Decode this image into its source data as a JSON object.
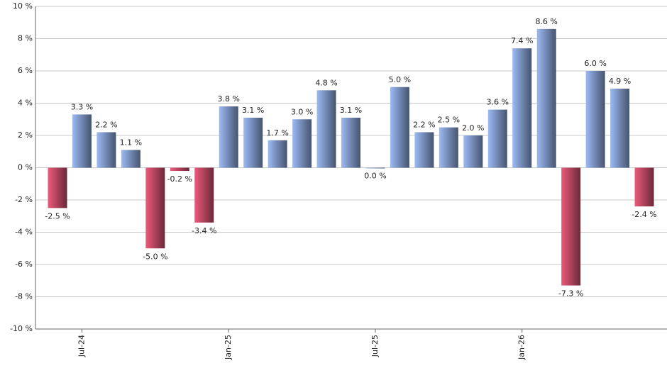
{
  "chart_data": {
    "type": "bar",
    "categories": [
      null,
      "Jul-24",
      null,
      null,
      null,
      null,
      null,
      "Jan-25",
      null,
      null,
      null,
      null,
      null,
      "Jul-25",
      null,
      null,
      null,
      null,
      null,
      "Jan-26",
      null,
      null,
      null,
      null,
      null
    ],
    "values": [
      -2.5,
      3.3,
      2.2,
      1.1,
      -5.0,
      -0.2,
      -3.4,
      3.8,
      3.1,
      1.7,
      3.0,
      4.8,
      3.1,
      0.0,
      5.0,
      2.2,
      2.5,
      2.0,
      3.6,
      7.4,
      8.6,
      -7.3,
      6.0,
      4.9,
      -2.4
    ],
    "value_labels": [
      "-2.5 %",
      "3.3 %",
      "2.2 %",
      "1.1 %",
      "-5.0 %",
      "-0.2 %",
      "-3.4 %",
      "3.8 %",
      "3.1 %",
      "1.7 %",
      "3.0 %",
      "4.8 %",
      "3.1 %",
      "0.0 %",
      "5.0 %",
      "2.2 %",
      "2.5 %",
      "2.0 %",
      "3.6 %",
      "7.4 %",
      "8.6 %",
      "-7.3 %",
      "6.0 %",
      "4.9 %",
      "-2.4 %"
    ],
    "color_positive": "#9cbaf4",
    "color_negative": "#ec5a7c",
    "ylim": [
      -10,
      10
    ],
    "yticks": [
      {
        "value": -10,
        "label": "-10 %"
      },
      {
        "value": -8,
        "label": "-8 %"
      },
      {
        "value": -6,
        "label": "-6 %"
      },
      {
        "value": -4,
        "label": "-4 %"
      },
      {
        "value": -2,
        "label": "-2 %"
      },
      {
        "value": 0,
        "label": "0 %"
      },
      {
        "value": 2,
        "label": "2 %"
      },
      {
        "value": 4,
        "label": "4 %"
      },
      {
        "value": 6,
        "label": "6 %"
      },
      {
        "value": 8,
        "label": "8 %"
      },
      {
        "value": 10,
        "label": "10 %"
      }
    ],
    "grid": true
  }
}
